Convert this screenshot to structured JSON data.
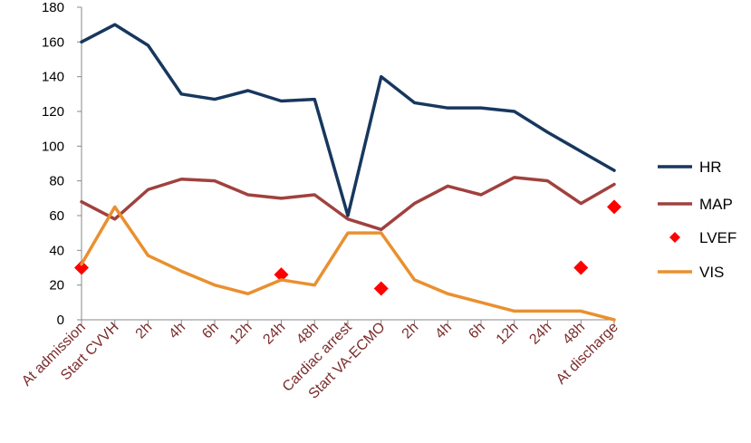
{
  "chart_data": {
    "type": "line",
    "categories": [
      "At admission",
      "Start CVVH",
      "2h",
      "4h",
      "6h",
      "12h",
      "24h",
      "48h",
      "Cardiac arrest",
      "Start VA-ECMO",
      "2h",
      "4h",
      "6h",
      "12h",
      "24h",
      "48h",
      "At discharge"
    ],
    "ylim": [
      0,
      180
    ],
    "yticks": [
      0,
      20,
      40,
      60,
      80,
      100,
      120,
      140,
      160,
      180
    ],
    "grid": false,
    "legend_position": "right",
    "series": [
      {
        "name": "HR",
        "kind": "line",
        "color": "#17375e",
        "values": [
          160,
          170,
          158,
          130,
          127,
          132,
          126,
          127,
          60,
          140,
          125,
          122,
          122,
          120,
          108,
          97,
          86
        ]
      },
      {
        "name": "MAP",
        "kind": "line",
        "color": "#a0413e",
        "values": [
          68,
          58,
          75,
          81,
          80,
          72,
          70,
          72,
          58,
          52,
          67,
          77,
          72,
          82,
          80,
          67,
          78
        ]
      },
      {
        "name": "LVEF",
        "kind": "scatter",
        "color": "#ff0000",
        "values": [
          30,
          null,
          null,
          null,
          null,
          null,
          26,
          null,
          null,
          18,
          null,
          null,
          null,
          null,
          null,
          30,
          65
        ]
      },
      {
        "name": "VIS",
        "kind": "line",
        "color": "#e9902f",
        "values": [
          32,
          65,
          37,
          28,
          20,
          15,
          23,
          20,
          50,
          50,
          23,
          15,
          10,
          5,
          5,
          5,
          0
        ]
      }
    ]
  }
}
